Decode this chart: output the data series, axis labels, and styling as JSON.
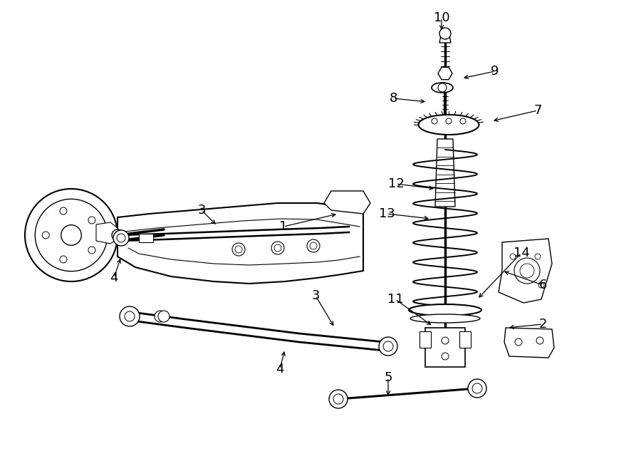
{
  "background_color": "#ffffff",
  "line_color": "#000000",
  "label_color": "#000000",
  "fig_width": 9.0,
  "fig_height": 6.61,
  "dpi": 100,
  "label_fontsize": 13
}
